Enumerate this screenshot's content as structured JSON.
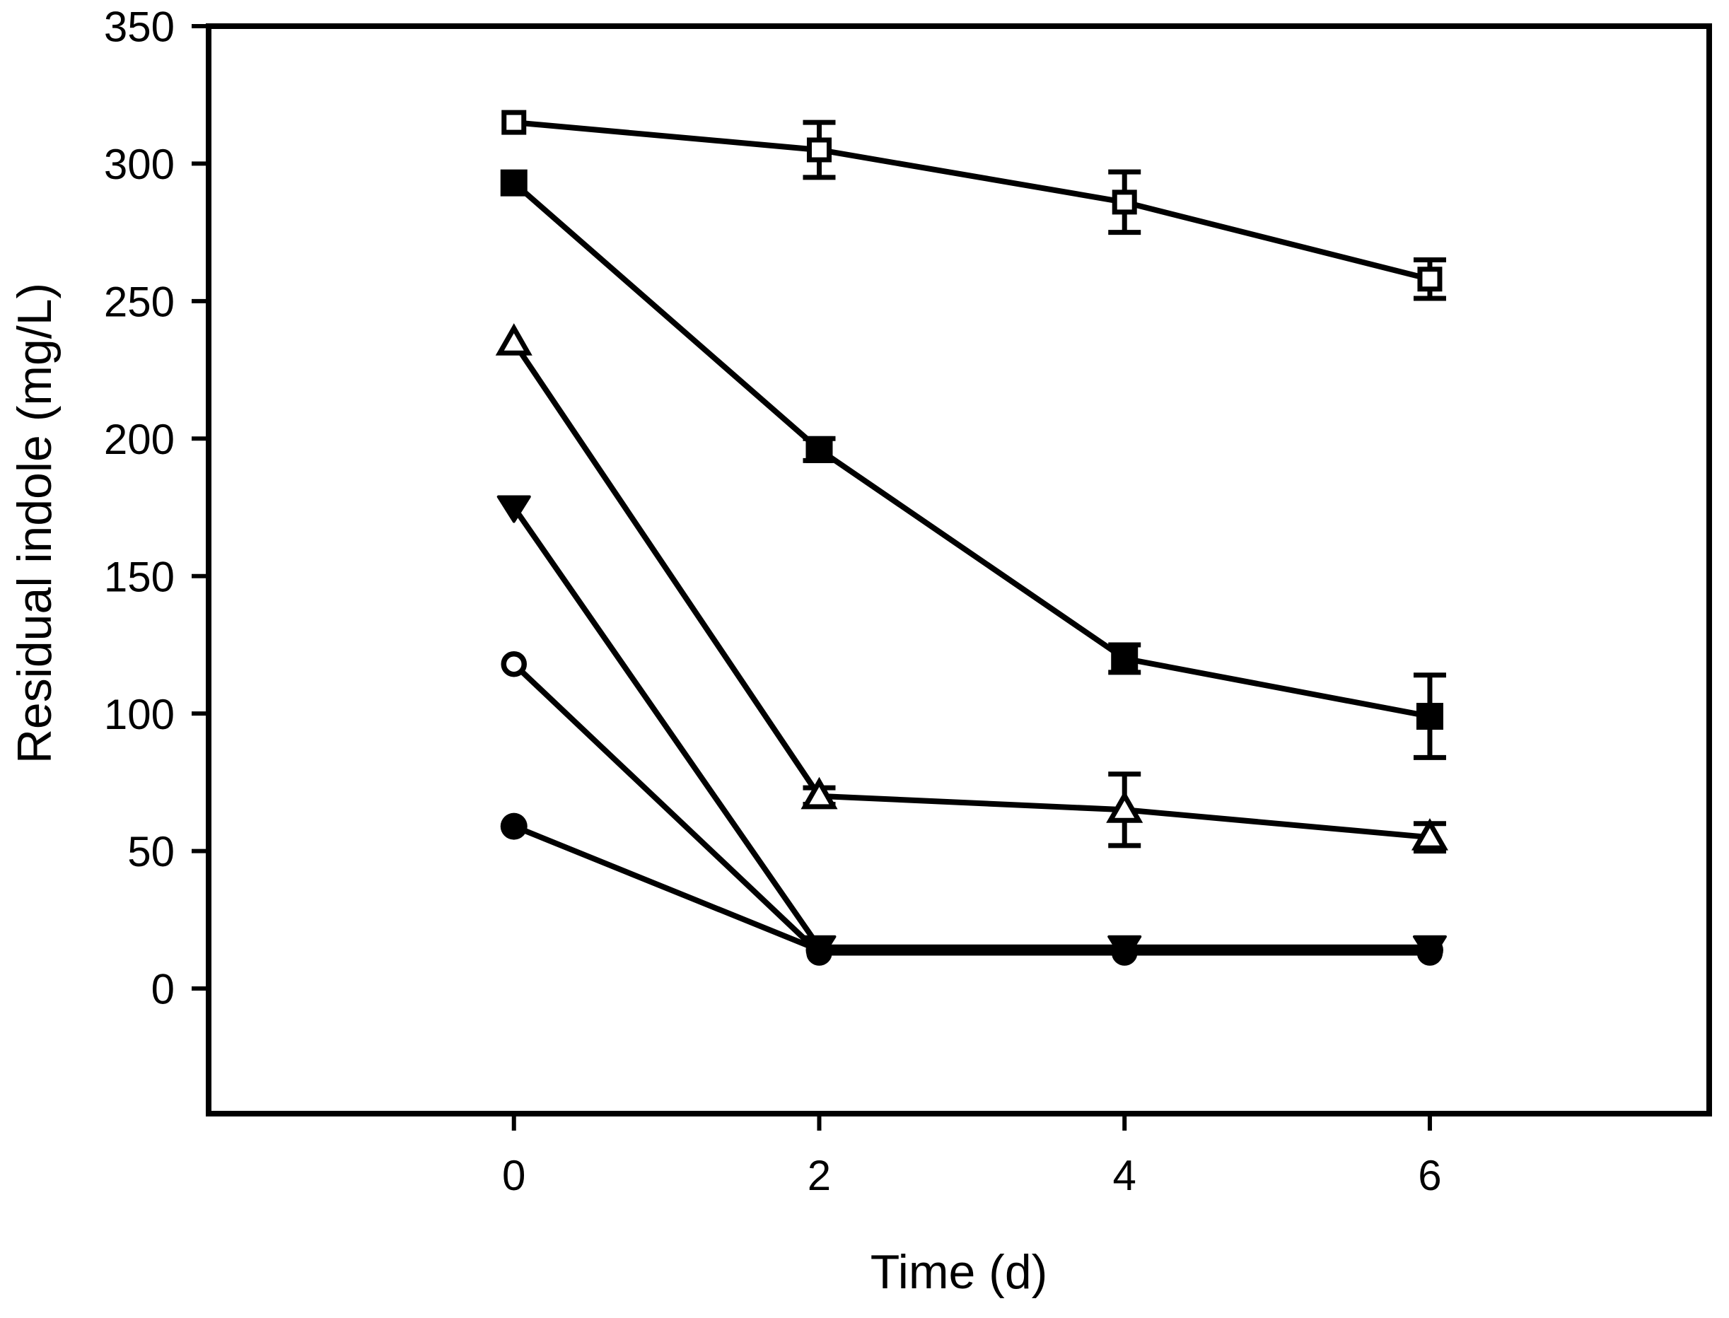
{
  "figure": {
    "background": "#ffffff",
    "ink_color": "#000000"
  },
  "chart_data": {
    "type": "line",
    "title": "",
    "xlabel": "Time (d)",
    "ylabel": "Residual indole (mg/L)",
    "grid": false,
    "legend": "none",
    "x": [
      0,
      2,
      4,
      6
    ],
    "x_ticks": [
      0,
      2,
      4,
      6
    ],
    "y_ticks": [
      0,
      50,
      100,
      150,
      200,
      250,
      300,
      350
    ],
    "xlim": [
      -2,
      7.83
    ],
    "ylim": [
      -45.5,
      350
    ],
    "series": [
      {
        "name": "open-square",
        "marker": "square-open",
        "values": [
          315,
          305,
          286,
          258
        ],
        "y_err": [
          0,
          10,
          11,
          7
        ]
      },
      {
        "name": "filled-square",
        "marker": "square-filled",
        "values": [
          293,
          196,
          120,
          99
        ],
        "y_err": [
          0,
          4,
          5,
          15
        ]
      },
      {
        "name": "open-triangle",
        "marker": "triangle-up-open",
        "values": [
          235,
          70,
          65,
          55
        ],
        "y_err": [
          0,
          3,
          13,
          5
        ]
      },
      {
        "name": "open-circle",
        "marker": "circle-open",
        "values": [
          118,
          13,
          13,
          13
        ],
        "y_err": [
          0,
          0,
          0,
          0
        ]
      },
      {
        "name": "filled-circle",
        "marker": "circle-filled",
        "values": [
          59,
          14,
          14,
          14
        ],
        "y_err": [
          0,
          0,
          0,
          0
        ]
      },
      {
        "name": "filled-triangle-down",
        "marker": "triangle-down-filled",
        "values": [
          175,
          15,
          15,
          15
        ],
        "y_err": [
          0,
          0,
          0,
          0
        ]
      }
    ]
  }
}
